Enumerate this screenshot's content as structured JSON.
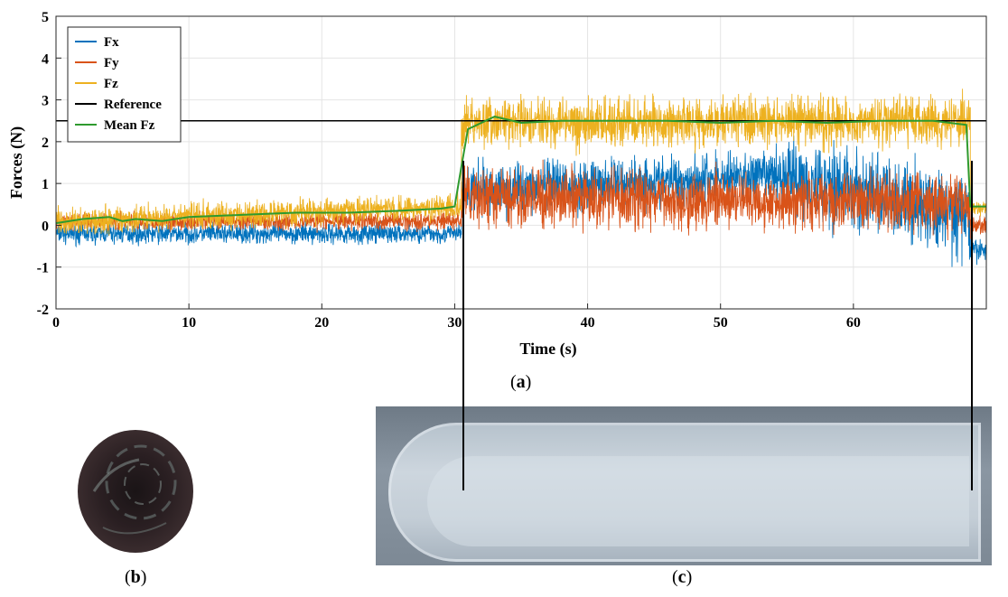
{
  "chart_data": {
    "type": "line",
    "xlabel": "Time (s)",
    "ylabel": "Forces (N)",
    "xlim": [
      0,
      70
    ],
    "ylim": [
      -2,
      5
    ],
    "xticks": [
      "0",
      "10",
      "20",
      "30",
      "40",
      "50",
      "60"
    ],
    "yticks": [
      "-2",
      "-1",
      "0",
      "1",
      "2",
      "3",
      "4",
      "5"
    ],
    "grid": true,
    "legend_position": "top-left",
    "series": [
      {
        "name": "Fx",
        "color": "#0072BD",
        "segments": [
          {
            "x": [
              0,
              30.5
            ],
            "mean": [
              -0.2,
              -0.2
            ],
            "spread": 0.35
          },
          {
            "x": [
              30.5,
              55
            ],
            "mean": [
              0.8,
              1.2
            ],
            "spread": 0.9
          },
          {
            "x": [
              55,
              68.8
            ],
            "mean": [
              1.2,
              0.2
            ],
            "spread": 1.4
          },
          {
            "x": [
              68.8,
              70
            ],
            "mean": [
              -0.6,
              -0.6
            ],
            "spread": 0.4
          }
        ]
      },
      {
        "name": "Fy",
        "color": "#D95319",
        "segments": [
          {
            "x": [
              0,
              30.5
            ],
            "mean": [
              0.1,
              0.1
            ],
            "spread": 0.3
          },
          {
            "x": [
              30.5,
              68.8
            ],
            "mean": [
              0.65,
              0.55
            ],
            "spread": 1.0
          },
          {
            "x": [
              68.8,
              70
            ],
            "mean": [
              0.0,
              0.0
            ],
            "spread": 0.3
          }
        ]
      },
      {
        "name": "Fz",
        "color": "#EDB120",
        "segments": [
          {
            "x": [
              0,
              30.5
            ],
            "mean": [
              0.1,
              0.45
            ],
            "spread": 0.45
          },
          {
            "x": [
              30.5,
              68.8
            ],
            "mean": [
              2.45,
              2.5
            ],
            "spread": 0.85
          },
          {
            "x": [
              68.8,
              70
            ],
            "mean": [
              0.4,
              0.4
            ],
            "spread": 0.25
          }
        ]
      },
      {
        "name": "Reference",
        "color": "#000000",
        "x": [
          0,
          70
        ],
        "y": [
          2.5,
          2.5
        ]
      },
      {
        "name": "Mean Fz",
        "color": "#2E9A2E",
        "x": [
          0,
          2,
          4,
          5,
          6,
          8,
          10,
          14,
          18,
          22,
          26,
          29,
          30,
          30.5,
          31,
          33,
          35,
          38,
          42,
          46,
          50,
          54,
          58,
          62,
          66,
          68.5,
          68.8,
          70
        ],
        "y": [
          0.05,
          0.15,
          0.2,
          0.1,
          0.15,
          0.1,
          0.2,
          0.25,
          0.3,
          0.3,
          0.35,
          0.4,
          0.45,
          1.4,
          2.3,
          2.6,
          2.45,
          2.5,
          2.5,
          2.5,
          2.45,
          2.5,
          2.45,
          2.5,
          2.5,
          2.4,
          0.45,
          0.45
        ]
      }
    ]
  },
  "labels": {
    "a": {
      "open": "(",
      "letter": "a",
      "close": ")"
    },
    "b": {
      "open": "(",
      "letter": "b",
      "close": ")"
    },
    "c": {
      "open": "(",
      "letter": "c",
      "close": ")"
    }
  }
}
